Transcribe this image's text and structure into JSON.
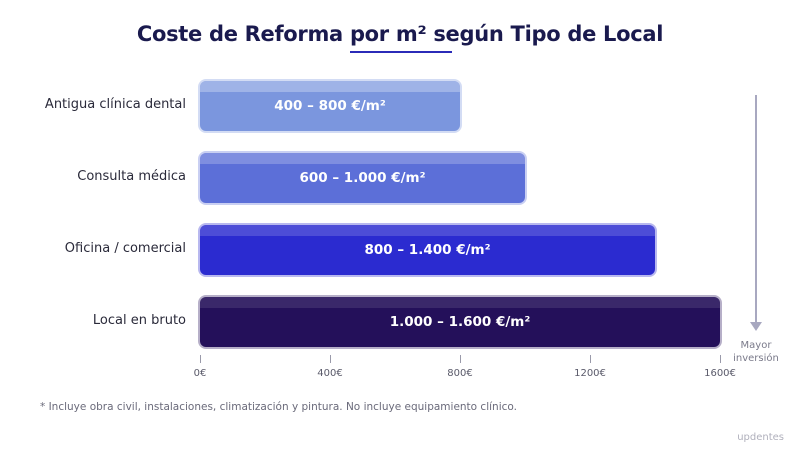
{
  "title": "Coste de Reforma por m² según Tipo de Local",
  "footnote": "* Incluye obra civil, instalaciones, climatización y pintura. No incluye equipamiento clínico.",
  "brand": "updentes",
  "annotation": {
    "line1": "Mayor",
    "line2": "inversión"
  },
  "colors": {
    "title": "#1a1a4e",
    "accent_underline": "#2b2bb8",
    "bar_1": "#7b96de",
    "bar_2": "#5c6fd8",
    "bar_3": "#2b2bd0",
    "bar_4": "#24105a"
  },
  "chart_data": {
    "type": "bar",
    "orientation": "horizontal",
    "categories": [
      "Antigua clínica dental",
      "Consulta médica",
      "Oficina / comercial",
      "Local en bruto"
    ],
    "values": [
      800,
      1000,
      1400,
      1600
    ],
    "ranges": [
      [
        400,
        800
      ],
      [
        600,
        1000
      ],
      [
        800,
        1400
      ],
      [
        1000,
        1600
      ]
    ],
    "data_labels": [
      "400 – 800 €/m²",
      "600 – 1.000 €/m²",
      "800 – 1.400 €/m²",
      "1.000 – 1.600 €/m²"
    ],
    "xlim": [
      0,
      1600
    ],
    "xticks": [
      0,
      400,
      800,
      1200,
      1600
    ],
    "xtick_labels": [
      "0€",
      "400€",
      "800€",
      "1200€",
      "1600€"
    ],
    "title": "Coste de Reforma por m² según Tipo de Local",
    "grid": false
  }
}
